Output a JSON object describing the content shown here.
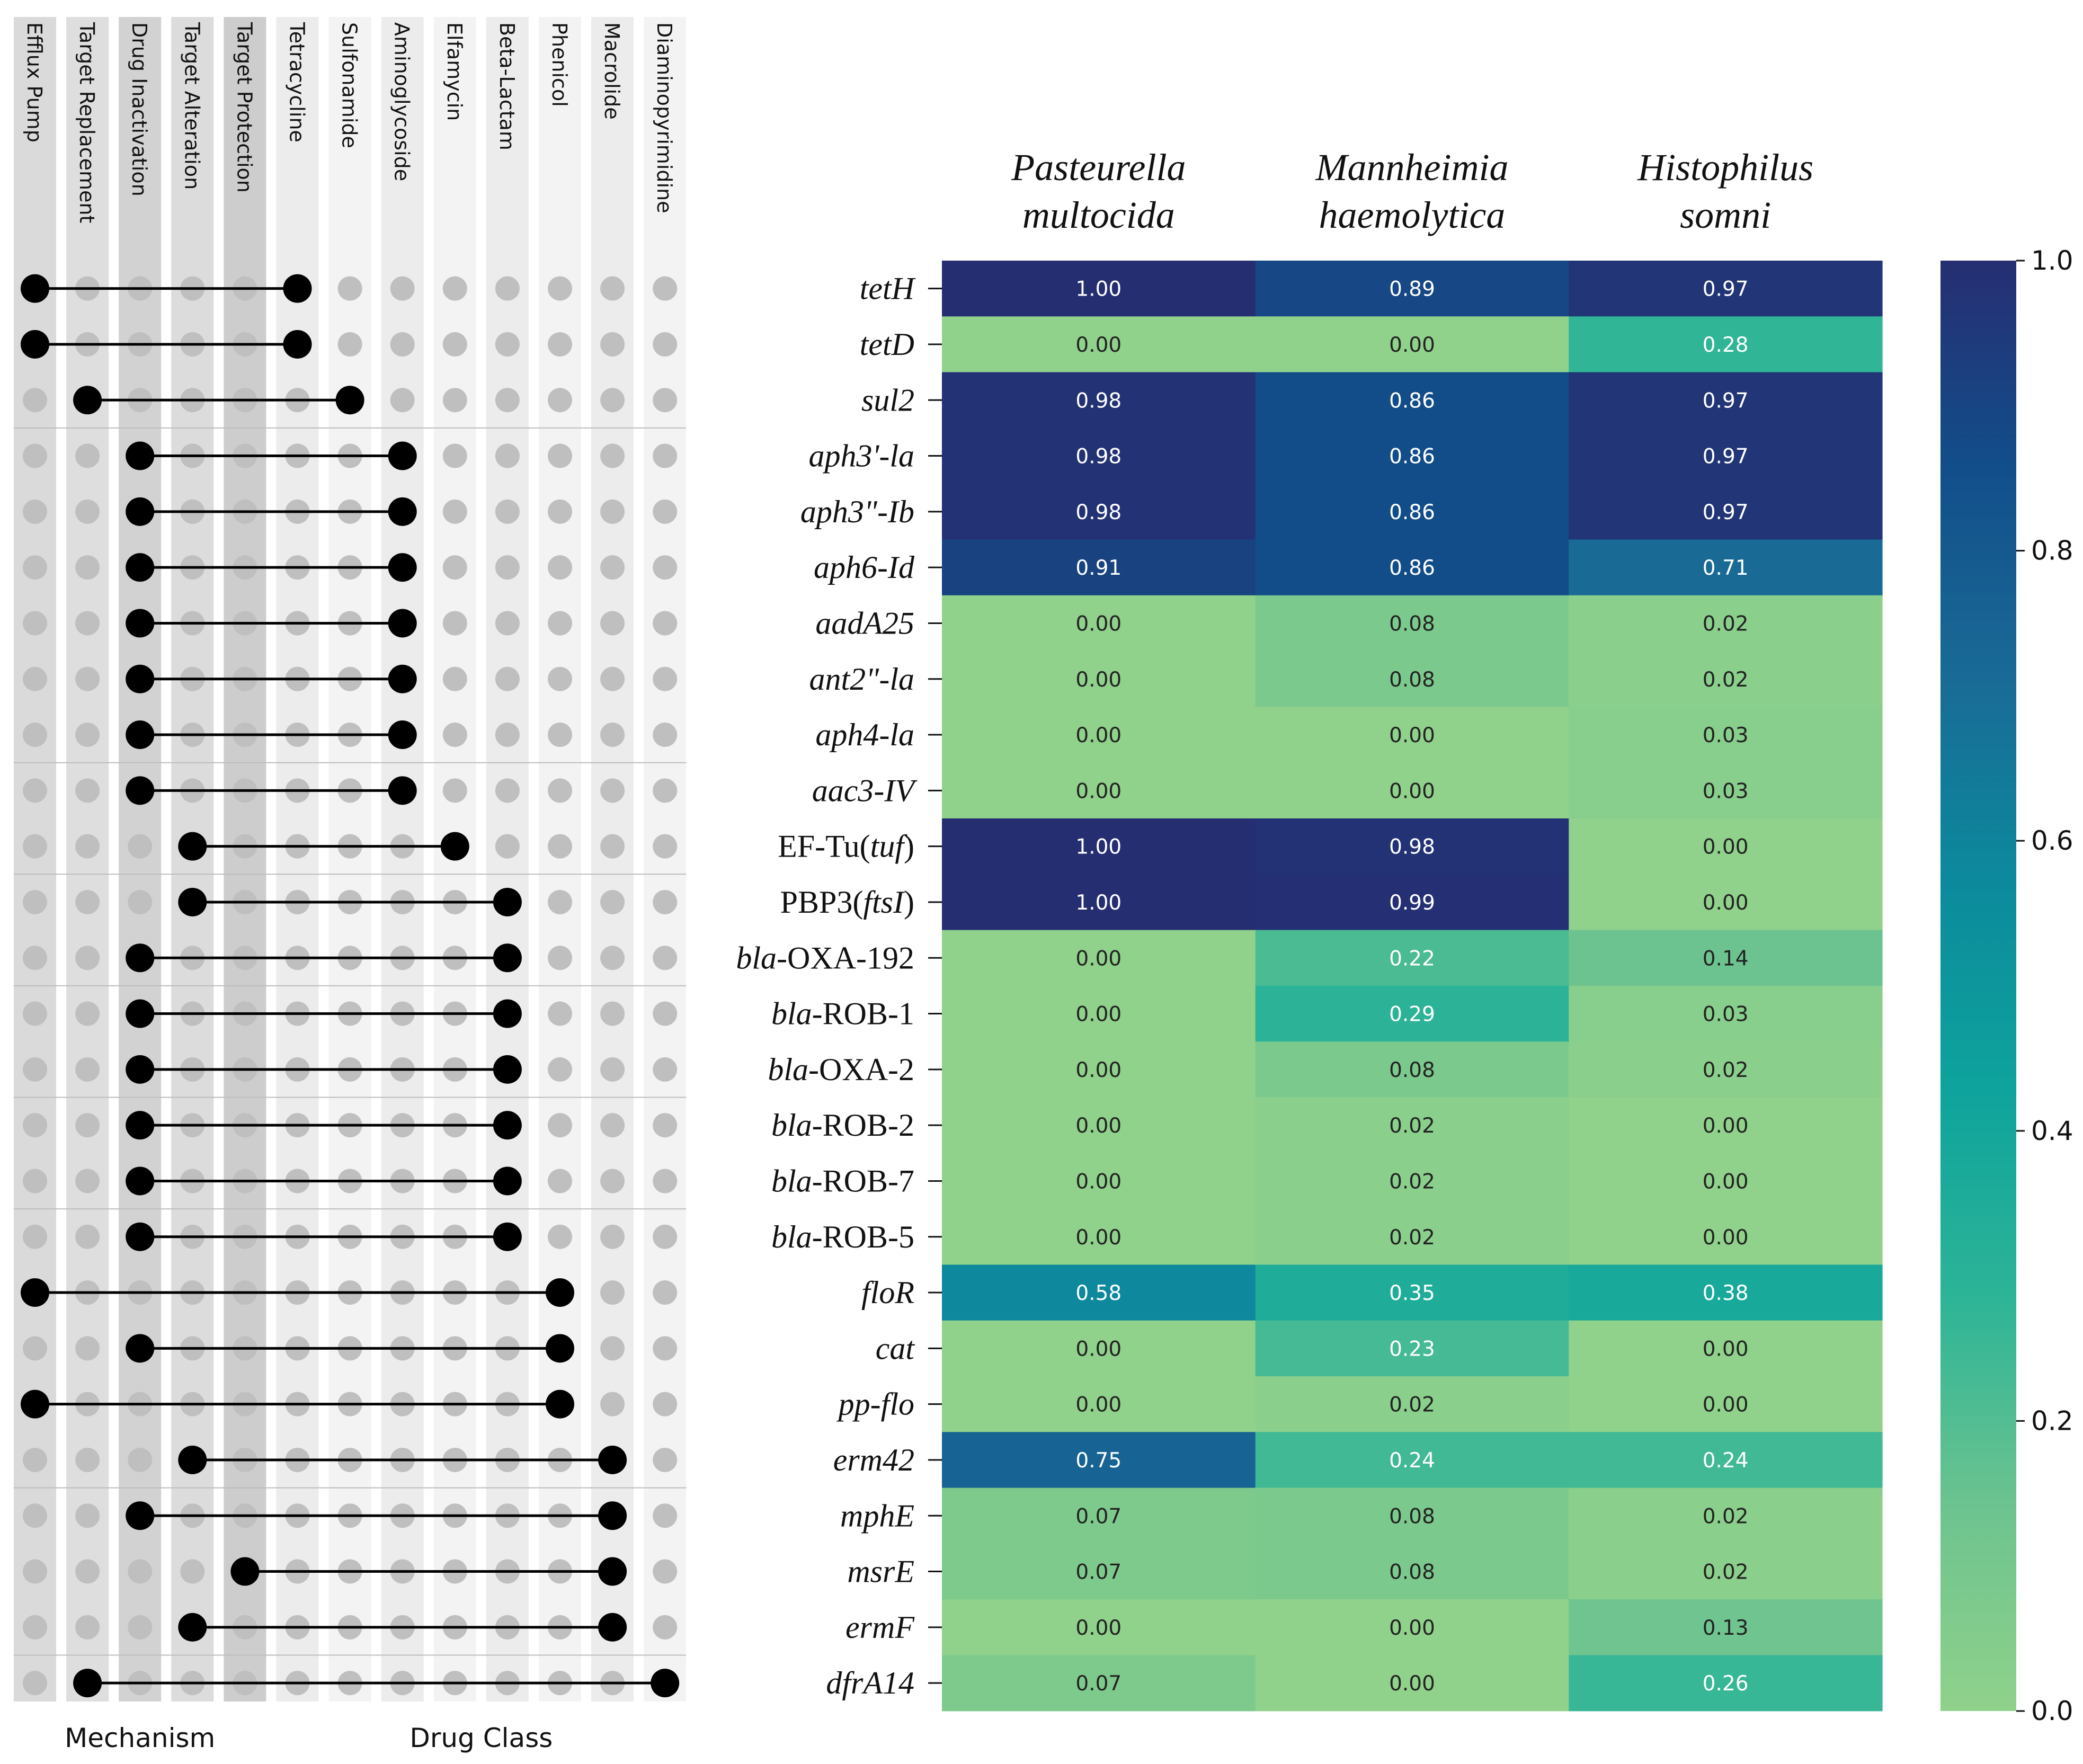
{
  "chart_data": {
    "type": "heatmap",
    "columns": [
      {
        "line1": "Pasteurella",
        "line2": "multocida"
      },
      {
        "line1": "Mannheimia",
        "line2": "haemolytica"
      },
      {
        "line1": "Histophilus",
        "line2": "somni"
      }
    ],
    "rows": [
      {
        "label": [
          {
            "t": "tetH",
            "i": true
          }
        ],
        "values": [
          1.0,
          0.89,
          0.97
        ],
        "labels": [
          "1.00",
          "0.89",
          "0.97"
        ],
        "mechanism": "Efflux Pump",
        "drug_class": "Tetracycline"
      },
      {
        "label": [
          {
            "t": "tetD",
            "i": true
          }
        ],
        "values": [
          0.0,
          0.0,
          0.28
        ],
        "labels": [
          "0.00",
          "0.00",
          "0.28"
        ],
        "mechanism": "Efflux Pump",
        "drug_class": "Tetracycline"
      },
      {
        "label": [
          {
            "t": "sul2",
            "i": true
          }
        ],
        "values": [
          0.98,
          0.86,
          0.97
        ],
        "labels": [
          "0.98",
          "0.86",
          "0.97"
        ],
        "mechanism": "Target Replacement",
        "drug_class": "Sulfonamide"
      },
      {
        "label": [
          {
            "t": "aph3'-la",
            "i": true
          }
        ],
        "values": [
          0.98,
          0.86,
          0.97
        ],
        "labels": [
          "0.98",
          "0.86",
          "0.97"
        ],
        "mechanism": "Drug Inactivation",
        "drug_class": "Aminoglycoside"
      },
      {
        "label": [
          {
            "t": "aph3\"-Ib",
            "i": true
          }
        ],
        "values": [
          0.98,
          0.86,
          0.97
        ],
        "labels": [
          "0.98",
          "0.86",
          "0.97"
        ],
        "mechanism": "Drug Inactivation",
        "drug_class": "Aminoglycoside"
      },
      {
        "label": [
          {
            "t": "aph6-Id",
            "i": true
          }
        ],
        "values": [
          0.91,
          0.86,
          0.71
        ],
        "labels": [
          "0.91",
          "0.86",
          "0.71"
        ],
        "mechanism": "Drug Inactivation",
        "drug_class": "Aminoglycoside"
      },
      {
        "label": [
          {
            "t": "aadA25",
            "i": true
          }
        ],
        "values": [
          0.0,
          0.08,
          0.02
        ],
        "labels": [
          "0.00",
          "0.08",
          "0.02"
        ],
        "mechanism": "Drug Inactivation",
        "drug_class": "Aminoglycoside"
      },
      {
        "label": [
          {
            "t": "ant2\"-la",
            "i": true
          }
        ],
        "values": [
          0.0,
          0.08,
          0.02
        ],
        "labels": [
          "0.00",
          "0.08",
          "0.02"
        ],
        "mechanism": "Drug Inactivation",
        "drug_class": "Aminoglycoside"
      },
      {
        "label": [
          {
            "t": "aph4-la",
            "i": true
          }
        ],
        "values": [
          0.0,
          0.0,
          0.03
        ],
        "labels": [
          "0.00",
          "0.00",
          "0.03"
        ],
        "mechanism": "Drug Inactivation",
        "drug_class": "Aminoglycoside"
      },
      {
        "label": [
          {
            "t": "aac3-IV",
            "i": true
          }
        ],
        "values": [
          0.0,
          0.0,
          0.03
        ],
        "labels": [
          "0.00",
          "0.00",
          "0.03"
        ],
        "mechanism": "Drug Inactivation",
        "drug_class": "Aminoglycoside"
      },
      {
        "label": [
          {
            "t": "EF-Tu(",
            "i": false
          },
          {
            "t": "tuf",
            "i": true
          },
          {
            "t": ")",
            "i": false
          }
        ],
        "values": [
          1.0,
          0.98,
          0.0
        ],
        "labels": [
          "1.00",
          "0.98",
          "0.00"
        ],
        "mechanism": "Target Alteration",
        "drug_class": "Elfamycin"
      },
      {
        "label": [
          {
            "t": "PBP3(",
            "i": false
          },
          {
            "t": "ftsI",
            "i": true
          },
          {
            "t": ")",
            "i": false
          }
        ],
        "values": [
          1.0,
          0.99,
          0.0
        ],
        "labels": [
          "1.00",
          "0.99",
          "0.00"
        ],
        "mechanism": "Target Alteration",
        "drug_class": "Beta-Lactam"
      },
      {
        "label": [
          {
            "t": "bla",
            "i": true
          },
          {
            "t": "-OXA-192",
            "i": false
          }
        ],
        "values": [
          0.0,
          0.22,
          0.14
        ],
        "labels": [
          "0.00",
          "0.22",
          "0.14"
        ],
        "mechanism": "Drug Inactivation",
        "drug_class": "Beta-Lactam"
      },
      {
        "label": [
          {
            "t": "bla",
            "i": true
          },
          {
            "t": "-ROB-1",
            "i": false
          }
        ],
        "values": [
          0.0,
          0.29,
          0.03
        ],
        "labels": [
          "0.00",
          "0.29",
          "0.03"
        ],
        "mechanism": "Drug Inactivation",
        "drug_class": "Beta-Lactam"
      },
      {
        "label": [
          {
            "t": "bla",
            "i": true
          },
          {
            "t": "-OXA-2",
            "i": false
          }
        ],
        "values": [
          0.0,
          0.08,
          0.02
        ],
        "labels": [
          "0.00",
          "0.08",
          "0.02"
        ],
        "mechanism": "Drug Inactivation",
        "drug_class": "Beta-Lactam"
      },
      {
        "label": [
          {
            "t": "bla",
            "i": true
          },
          {
            "t": "-ROB-2",
            "i": false
          }
        ],
        "values": [
          0.0,
          0.02,
          0.0
        ],
        "labels": [
          "0.00",
          "0.02",
          "0.00"
        ],
        "mechanism": "Drug Inactivation",
        "drug_class": "Beta-Lactam"
      },
      {
        "label": [
          {
            "t": "bla",
            "i": true
          },
          {
            "t": "-ROB-7",
            "i": false
          }
        ],
        "values": [
          0.0,
          0.02,
          0.0
        ],
        "labels": [
          "0.00",
          "0.02",
          "0.00"
        ],
        "mechanism": "Drug Inactivation",
        "drug_class": "Beta-Lactam"
      },
      {
        "label": [
          {
            "t": "bla",
            "i": true
          },
          {
            "t": "-ROB-5",
            "i": false
          }
        ],
        "values": [
          0.0,
          0.02,
          0.0
        ],
        "labels": [
          "0.00",
          "0.02",
          "0.00"
        ],
        "mechanism": "Drug Inactivation",
        "drug_class": "Beta-Lactam"
      },
      {
        "label": [
          {
            "t": "floR",
            "i": true
          }
        ],
        "values": [
          0.58,
          0.35,
          0.38
        ],
        "labels": [
          "0.58",
          "0.35",
          "0.38"
        ],
        "mechanism": "Efflux Pump",
        "drug_class": "Phenicol"
      },
      {
        "label": [
          {
            "t": "cat",
            "i": true
          }
        ],
        "values": [
          0.0,
          0.23,
          0.0
        ],
        "labels": [
          "0.00",
          "0.23",
          "0.00"
        ],
        "mechanism": "Drug Inactivation",
        "drug_class": "Phenicol"
      },
      {
        "label": [
          {
            "t": "pp-flo",
            "i": true
          }
        ],
        "values": [
          0.0,
          0.02,
          0.0
        ],
        "labels": [
          "0.00",
          "0.02",
          "0.00"
        ],
        "mechanism": "Efflux Pump",
        "drug_class": "Phenicol"
      },
      {
        "label": [
          {
            "t": "erm42",
            "i": true
          }
        ],
        "values": [
          0.75,
          0.24,
          0.24
        ],
        "labels": [
          "0.75",
          "0.24",
          "0.24"
        ],
        "mechanism": "Target Alteration",
        "drug_class": "Macrolide"
      },
      {
        "label": [
          {
            "t": "mphE",
            "i": true
          }
        ],
        "values": [
          0.07,
          0.08,
          0.02
        ],
        "labels": [
          "0.07",
          "0.08",
          "0.02"
        ],
        "mechanism": "Drug Inactivation",
        "drug_class": "Macrolide"
      },
      {
        "label": [
          {
            "t": "msrE",
            "i": true
          }
        ],
        "values": [
          0.07,
          0.08,
          0.02
        ],
        "labels": [
          "0.07",
          "0.08",
          "0.02"
        ],
        "mechanism": "Target Protection",
        "drug_class": "Macrolide"
      },
      {
        "label": [
          {
            "t": "ermF",
            "i": true
          }
        ],
        "values": [
          0.0,
          0.0,
          0.13
        ],
        "labels": [
          "0.00",
          "0.00",
          "0.13"
        ],
        "mechanism": "Target Alteration",
        "drug_class": "Macrolide"
      },
      {
        "label": [
          {
            "t": "dfrA14",
            "i": true
          }
        ],
        "values": [
          0.07,
          0.0,
          0.26
        ],
        "labels": [
          "0.07",
          "0.00",
          "0.26"
        ],
        "mechanism": "Target Replacement",
        "drug_class": "Diaminopyrimidine"
      }
    ],
    "mechanisms": [
      "Efflux Pump",
      "Target Replacement",
      "Drug Inactivation",
      "Target Alteration",
      "Target Protection"
    ],
    "drug_classes": [
      "Tetracycline",
      "Sulfonamide",
      "Aminoglycoside",
      "Elfamycin",
      "Beta-Lactam",
      "Phenicol",
      "Macrolide",
      "Diaminopyrimidine"
    ],
    "group_labels": {
      "mechanism": "Mechanism",
      "drug_class": "Drug Class"
    },
    "colorbar": {
      "range": [
        0.0,
        1.0
      ],
      "ticks": [
        0.0,
        0.2,
        0.4,
        0.6,
        0.8,
        1.0
      ],
      "tick_labels": [
        "0.0",
        "0.2",
        "0.4",
        "0.6",
        "0.8",
        "1.0"
      ],
      "colormap_stops": [
        "#90d18b",
        "#6cc38f",
        "#2db497",
        "#0ea39c",
        "#0c8a9c",
        "#196a96",
        "#124e8a",
        "#262e72"
      ]
    }
  }
}
